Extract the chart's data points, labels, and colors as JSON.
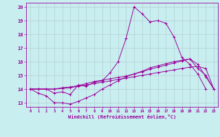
{
  "xlabel": "Windchill (Refroidissement éolien,°C)",
  "background_color": "#c8eef0",
  "line_color": "#990099",
  "grid_color": "#b0c8cc",
  "xlim": [
    -0.5,
    23.5
  ],
  "ylim": [
    12.7,
    20.3
  ],
  "xticks": [
    0,
    1,
    2,
    3,
    4,
    5,
    6,
    7,
    8,
    9,
    10,
    11,
    12,
    13,
    14,
    15,
    16,
    17,
    18,
    19,
    20,
    21,
    22,
    23
  ],
  "yticks": [
    13,
    14,
    15,
    16,
    17,
    18,
    19,
    20
  ],
  "series1_x": [
    0,
    1,
    2,
    3,
    4,
    5,
    6,
    7,
    8,
    9,
    10,
    11,
    12,
    13,
    14,
    15,
    16,
    17,
    18,
    19,
    20,
    21,
    22
  ],
  "series1_y": [
    14.0,
    14.0,
    14.0,
    13.7,
    13.8,
    13.6,
    14.3,
    14.2,
    14.5,
    14.6,
    15.2,
    16.0,
    17.7,
    20.0,
    19.5,
    18.9,
    19.0,
    18.8,
    17.8,
    16.3,
    15.8,
    15.1,
    14.0
  ],
  "series2_x": [
    0,
    1,
    2,
    3,
    4,
    5,
    6,
    7,
    8,
    9,
    10,
    11,
    12,
    13,
    14,
    15,
    16,
    17,
    18,
    19,
    20,
    21,
    22,
    23
  ],
  "series2_y": [
    14.0,
    13.7,
    13.5,
    13.0,
    13.0,
    12.9,
    13.1,
    13.35,
    13.6,
    14.0,
    14.3,
    14.6,
    14.9,
    15.1,
    15.3,
    15.55,
    15.7,
    15.85,
    16.0,
    16.1,
    16.2,
    15.8,
    14.9,
    14.0
  ],
  "series3_x": [
    0,
    1,
    2,
    3,
    4,
    5,
    6,
    7,
    8,
    9,
    10,
    11,
    12,
    13,
    14,
    15,
    16,
    17,
    18,
    19,
    20,
    21,
    22,
    23
  ],
  "series3_y": [
    14.0,
    14.0,
    14.0,
    14.0,
    14.05,
    14.1,
    14.2,
    14.3,
    14.4,
    14.5,
    14.6,
    14.7,
    14.8,
    14.9,
    15.0,
    15.1,
    15.2,
    15.3,
    15.4,
    15.5,
    15.6,
    15.65,
    15.5,
    14.0
  ],
  "series4_x": [
    0,
    1,
    2,
    3,
    4,
    5,
    6,
    7,
    8,
    9,
    10,
    11,
    12,
    13,
    14,
    15,
    16,
    17,
    18,
    19,
    20,
    21,
    22,
    23
  ],
  "series4_y": [
    14.0,
    14.0,
    14.0,
    14.0,
    14.1,
    14.15,
    14.25,
    14.4,
    14.55,
    14.65,
    14.75,
    14.85,
    14.95,
    15.1,
    15.25,
    15.45,
    15.6,
    15.75,
    15.9,
    16.05,
    16.2,
    15.5,
    15.0,
    14.0
  ]
}
